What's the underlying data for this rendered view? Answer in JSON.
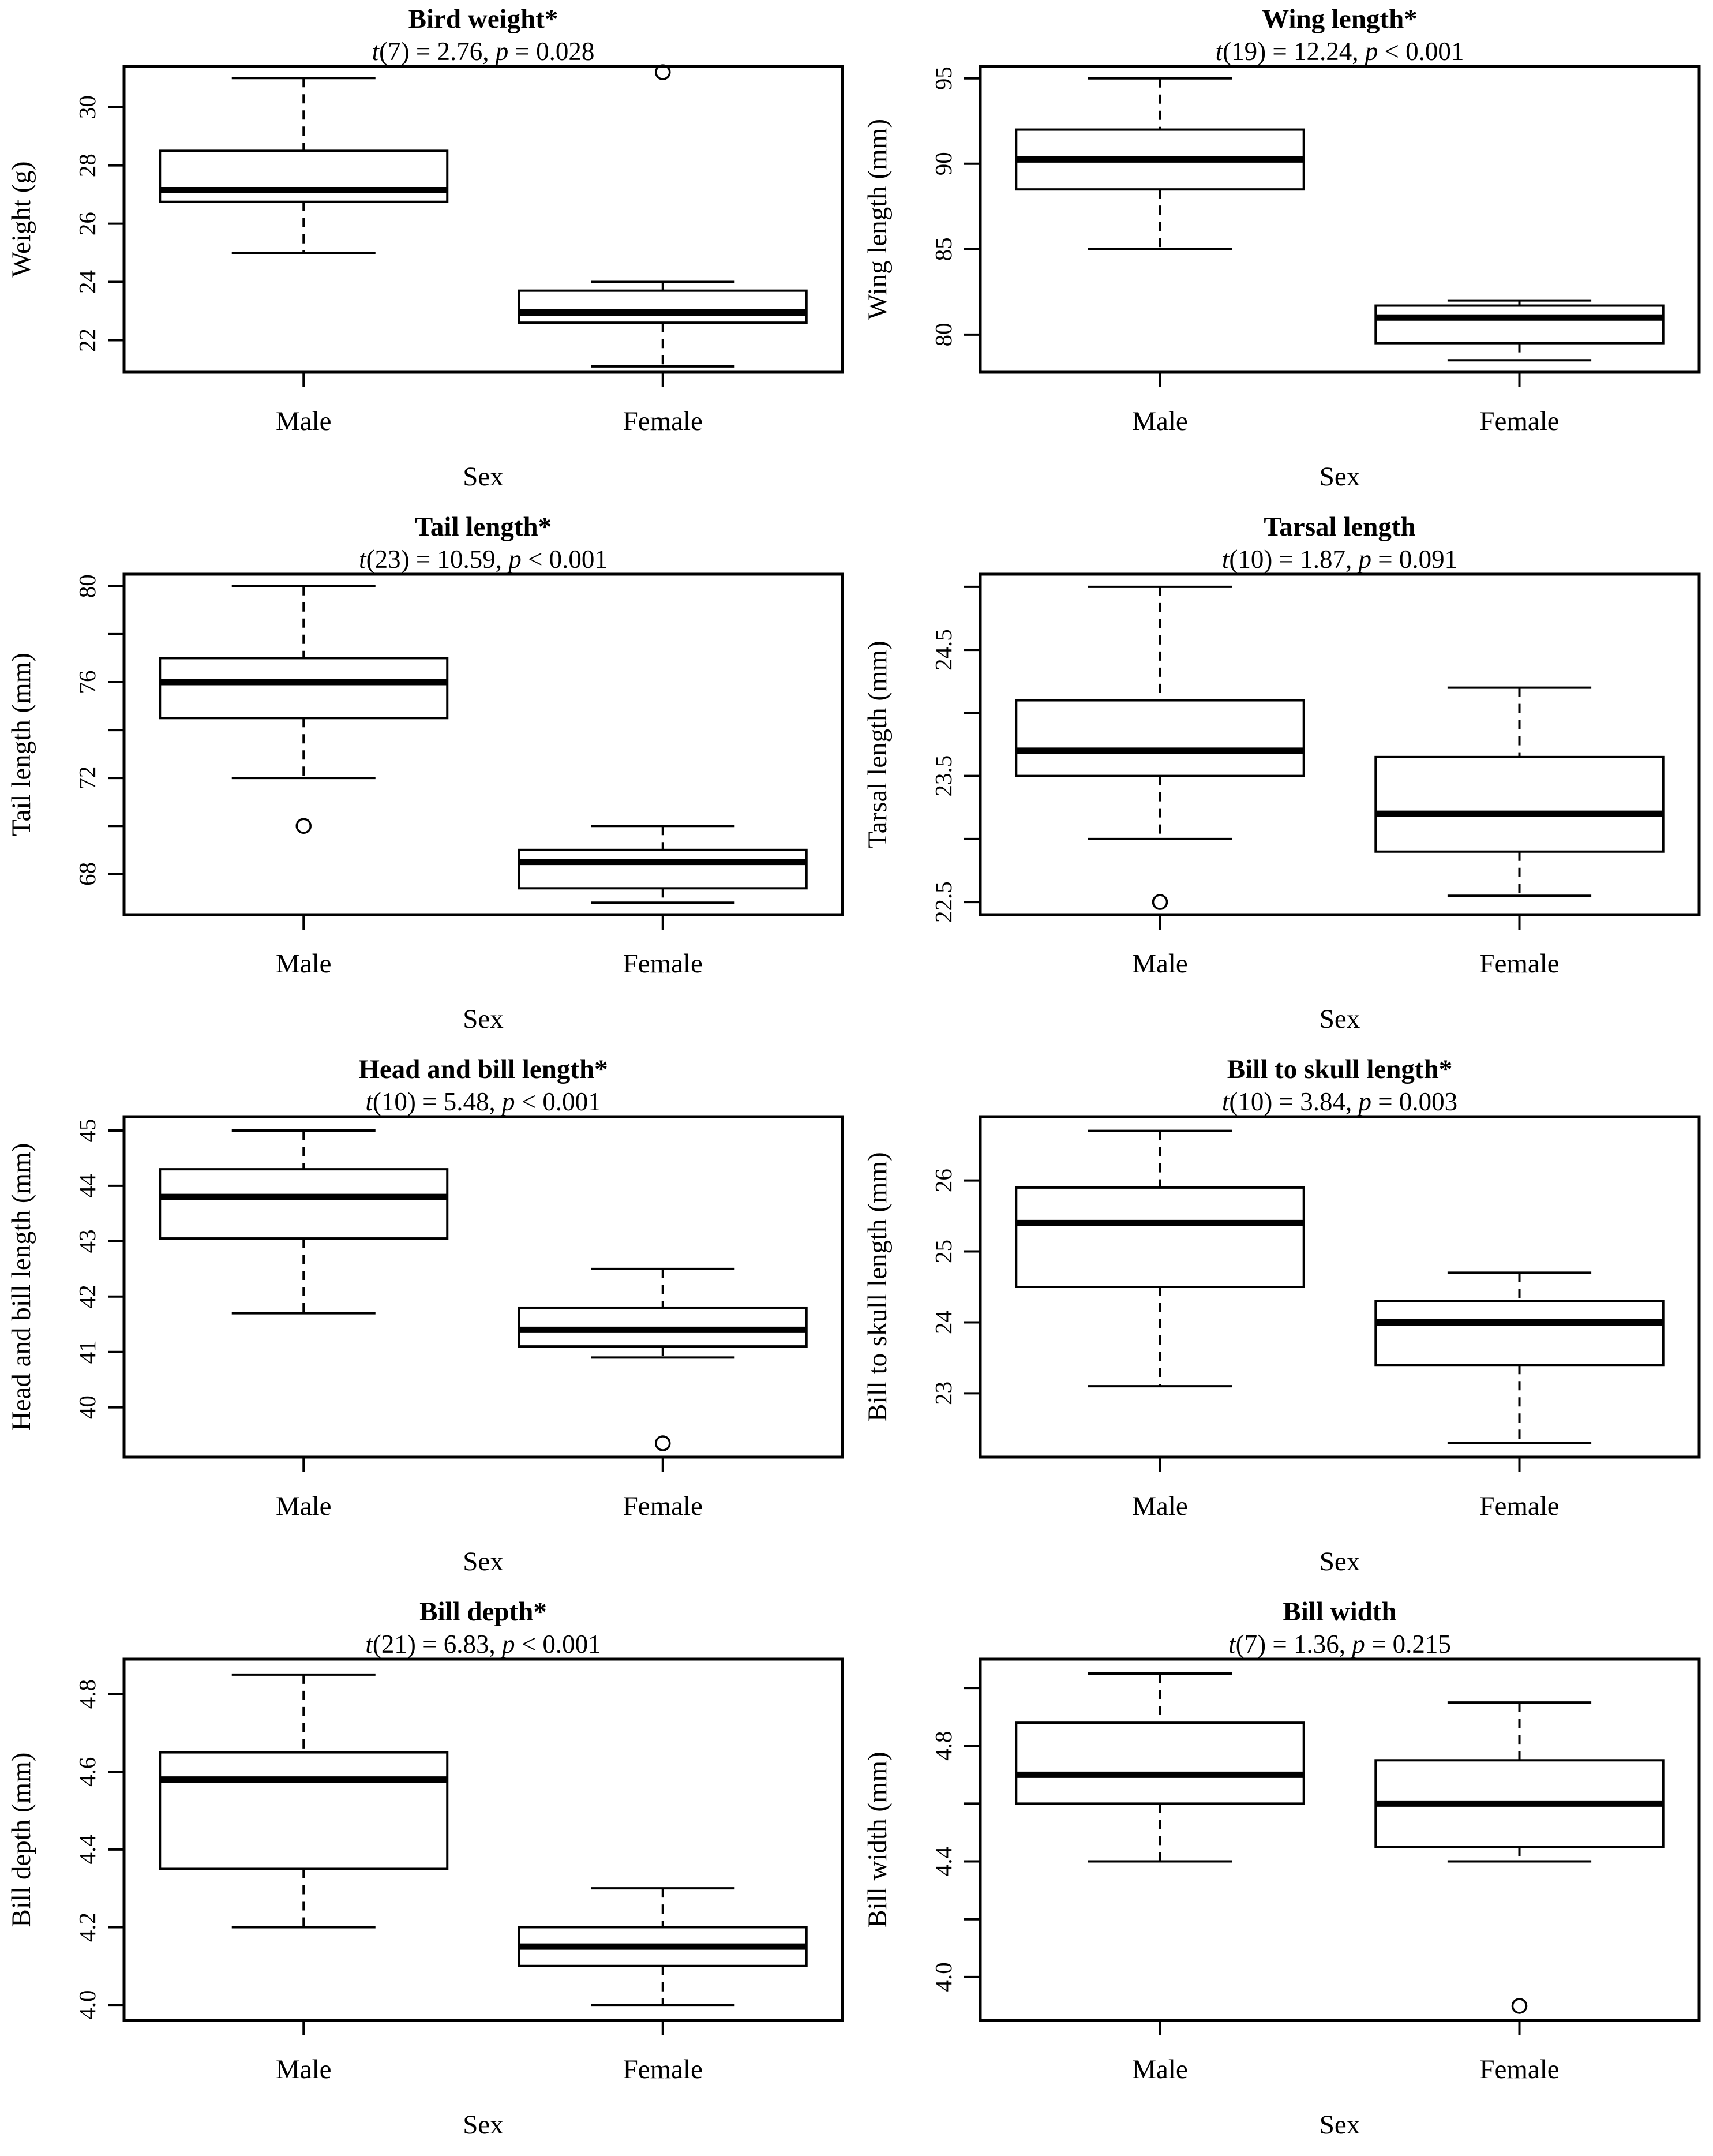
{
  "page": {
    "background": "#ffffff",
    "foreground": "#000000",
    "description": "Grid of eight base-R style box-and-whisker plots comparing Male vs Female bird morphometrics with t-test results"
  },
  "chart_data": [
    {
      "type": "boxplot",
      "title": "Bird weight*",
      "stat_t": "t",
      "stat_mid": "(7) = 2.76, ",
      "stat_p": "p",
      "stat_end": " = 0.028",
      "xlabel": "Sex",
      "ylabel": "Weight (g)",
      "categories": [
        "Male",
        "Female"
      ],
      "ylim": [
        20.9,
        31.4
      ],
      "yticks": [
        {
          "v": 22,
          "t": "22"
        },
        {
          "v": 24,
          "t": "24"
        },
        {
          "v": 26,
          "t": "26"
        },
        {
          "v": 28,
          "t": "28"
        },
        {
          "v": 30,
          "t": "30"
        }
      ],
      "series": [
        {
          "name": "Male",
          "min": 25.0,
          "q1": 26.75,
          "median": 27.15,
          "q3": 28.5,
          "max": 31.0,
          "outliers": []
        },
        {
          "name": "Female",
          "min": 21.1,
          "q1": 22.6,
          "median": 22.95,
          "q3": 23.7,
          "max": 24.0,
          "outliers": [
            31.2
          ]
        }
      ]
    },
    {
      "type": "boxplot",
      "title": "Wing length*",
      "stat_t": "t",
      "stat_mid": "(19) = 12.24, ",
      "stat_p": "p",
      "stat_end": " < 0.001",
      "xlabel": "Sex",
      "ylabel": "Wing length (mm)",
      "categories": [
        "Male",
        "Female"
      ],
      "ylim": [
        77.8,
        95.7
      ],
      "yticks": [
        {
          "v": 80,
          "t": "80"
        },
        {
          "v": 85,
          "t": "85"
        },
        {
          "v": 90,
          "t": "90"
        },
        {
          "v": 95,
          "t": "95"
        }
      ],
      "series": [
        {
          "name": "Male",
          "min": 85.0,
          "q1": 88.5,
          "median": 90.25,
          "q3": 92.0,
          "max": 95.0,
          "outliers": []
        },
        {
          "name": "Female",
          "min": 78.5,
          "q1": 79.5,
          "median": 81.0,
          "q3": 81.7,
          "max": 82.0,
          "outliers": []
        }
      ]
    },
    {
      "type": "boxplot",
      "title": "Tail length*",
      "stat_t": "t",
      "stat_mid": "(23) = 10.59, ",
      "stat_p": "p",
      "stat_end": " < 0.001",
      "xlabel": "Sex",
      "ylabel": "Tail length (mm)",
      "categories": [
        "Male",
        "Female"
      ],
      "ylim": [
        66.3,
        80.5
      ],
      "yticks": [
        {
          "v": 68,
          "t": "68"
        },
        {
          "v": 70,
          "t": ""
        },
        {
          "v": 72,
          "t": "72"
        },
        {
          "v": 74,
          "t": ""
        },
        {
          "v": 76,
          "t": "76"
        },
        {
          "v": 78,
          "t": ""
        },
        {
          "v": 80,
          "t": "80"
        }
      ],
      "series": [
        {
          "name": "Male",
          "min": 72.0,
          "q1": 74.5,
          "median": 76.0,
          "q3": 77.0,
          "max": 80.0,
          "outliers": [
            70.0
          ]
        },
        {
          "name": "Female",
          "min": 66.8,
          "q1": 67.4,
          "median": 68.5,
          "q3": 69.0,
          "max": 70.0,
          "outliers": []
        }
      ]
    },
    {
      "type": "boxplot",
      "title": "Tarsal length",
      "stat_t": "t",
      "stat_mid": "(10) = 1.87, ",
      "stat_p": "p",
      "stat_end": " = 0.091",
      "xlabel": "Sex",
      "ylabel": "Tarsal length (mm)",
      "categories": [
        "Male",
        "Female"
      ],
      "ylim": [
        22.4,
        25.1
      ],
      "yticks": [
        {
          "v": 22.5,
          "t": "22.5"
        },
        {
          "v": 23.0,
          "t": ""
        },
        {
          "v": 23.5,
          "t": "23.5"
        },
        {
          "v": 24.0,
          "t": ""
        },
        {
          "v": 24.5,
          "t": "24.5"
        },
        {
          "v": 25.0,
          "t": ""
        }
      ],
      "series": [
        {
          "name": "Male",
          "min": 23.0,
          "q1": 23.5,
          "median": 23.7,
          "q3": 24.1,
          "max": 25.0,
          "outliers": [
            22.5
          ]
        },
        {
          "name": "Female",
          "min": 22.55,
          "q1": 22.9,
          "median": 23.2,
          "q3": 23.65,
          "max": 24.2,
          "outliers": []
        }
      ]
    },
    {
      "type": "boxplot",
      "title": "Head and bill length*",
      "stat_t": "t",
      "stat_mid": "(10) = 5.48, ",
      "stat_p": "p",
      "stat_end": " < 0.001",
      "xlabel": "Sex",
      "ylabel": "Head and bill length (mm)",
      "categories": [
        "Male",
        "Female"
      ],
      "ylim": [
        39.1,
        45.25
      ],
      "yticks": [
        {
          "v": 40,
          "t": "40"
        },
        {
          "v": 41,
          "t": "41"
        },
        {
          "v": 42,
          "t": "42"
        },
        {
          "v": 43,
          "t": "43"
        },
        {
          "v": 44,
          "t": "44"
        },
        {
          "v": 45,
          "t": "45"
        }
      ],
      "series": [
        {
          "name": "Male",
          "min": 41.7,
          "q1": 43.05,
          "median": 43.8,
          "q3": 44.3,
          "max": 45.0,
          "outliers": []
        },
        {
          "name": "Female",
          "min": 40.9,
          "q1": 41.1,
          "median": 41.4,
          "q3": 41.8,
          "max": 42.5,
          "outliers": [
            39.35
          ]
        }
      ]
    },
    {
      "type": "boxplot",
      "title": "Bill to skull length*",
      "stat_t": "t",
      "stat_mid": "(10) = 3.84, ",
      "stat_p": "p",
      "stat_end": " = 0.003",
      "xlabel": "Sex",
      "ylabel": "Bill to skull length (mm)",
      "categories": [
        "Male",
        "Female"
      ],
      "ylim": [
        22.1,
        26.9
      ],
      "yticks": [
        {
          "v": 23,
          "t": "23"
        },
        {
          "v": 24,
          "t": "24"
        },
        {
          "v": 25,
          "t": "25"
        },
        {
          "v": 26,
          "t": "26"
        }
      ],
      "series": [
        {
          "name": "Male",
          "min": 23.1,
          "q1": 24.5,
          "median": 25.4,
          "q3": 25.9,
          "max": 26.7,
          "outliers": []
        },
        {
          "name": "Female",
          "min": 22.3,
          "q1": 23.4,
          "median": 24.0,
          "q3": 24.3,
          "max": 24.7,
          "outliers": []
        }
      ]
    },
    {
      "type": "boxplot",
      "title": "Bill depth*",
      "stat_t": "t",
      "stat_mid": "(21) = 6.83, ",
      "stat_p": "p",
      "stat_end": " < 0.001",
      "xlabel": "Sex",
      "ylabel": "Bill depth (mm)",
      "categories": [
        "Male",
        "Female"
      ],
      "ylim": [
        3.96,
        4.89
      ],
      "yticks": [
        {
          "v": 4.0,
          "t": "4.0"
        },
        {
          "v": 4.2,
          "t": "4.2"
        },
        {
          "v": 4.4,
          "t": "4.4"
        },
        {
          "v": 4.6,
          "t": "4.6"
        },
        {
          "v": 4.8,
          "t": "4.8"
        }
      ],
      "series": [
        {
          "name": "Male",
          "min": 4.2,
          "q1": 4.35,
          "median": 4.58,
          "q3": 4.65,
          "max": 4.85,
          "outliers": []
        },
        {
          "name": "Female",
          "min": 4.0,
          "q1": 4.1,
          "median": 4.15,
          "q3": 4.2,
          "max": 4.3,
          "outliers": []
        }
      ]
    },
    {
      "type": "boxplot",
      "title": "Bill width",
      "stat_t": "t",
      "stat_mid": "(7) = 1.36, ",
      "stat_p": "p",
      "stat_end": " = 0.215",
      "xlabel": "Sex",
      "ylabel": "Bill width (mm)",
      "categories": [
        "Male",
        "Female"
      ],
      "ylim": [
        3.85,
        5.1
      ],
      "yticks": [
        {
          "v": 4.0,
          "t": "4.0"
        },
        {
          "v": 4.2,
          "t": ""
        },
        {
          "v": 4.4,
          "t": "4.4"
        },
        {
          "v": 4.6,
          "t": ""
        },
        {
          "v": 4.8,
          "t": "4.8"
        },
        {
          "v": 5.0,
          "t": ""
        }
      ],
      "series": [
        {
          "name": "Male",
          "min": 4.4,
          "q1": 4.6,
          "median": 4.7,
          "q3": 4.88,
          "max": 5.05,
          "outliers": []
        },
        {
          "name": "Female",
          "min": 4.4,
          "q1": 4.45,
          "median": 4.6,
          "q3": 4.75,
          "max": 4.95,
          "outliers": [
            3.9
          ]
        }
      ]
    }
  ]
}
